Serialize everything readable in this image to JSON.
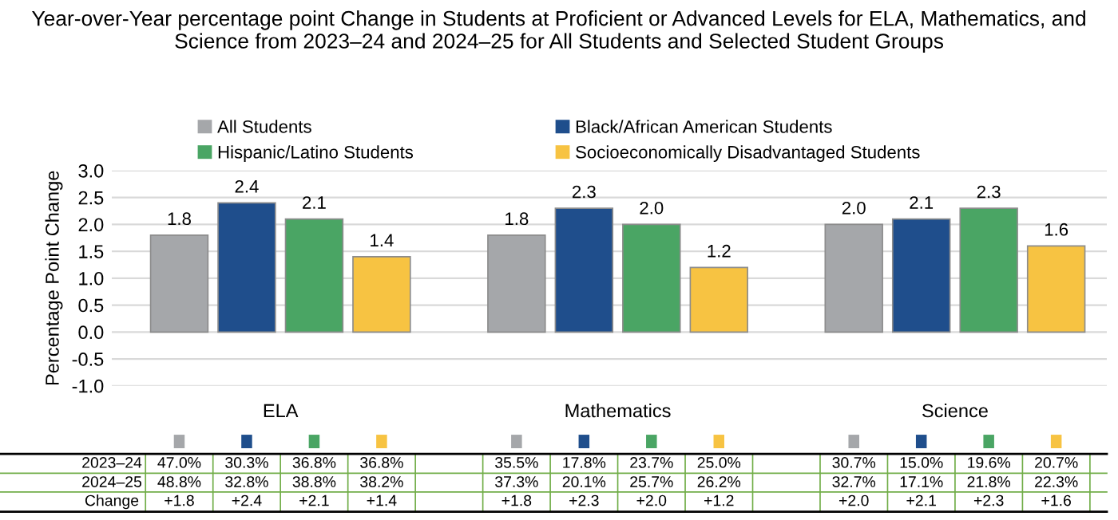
{
  "chart_data": {
    "type": "bar",
    "title": "Year-over-Year percentage point Change in Students at Proficient or Advanced Levels for ELA, Mathematics, and Science from 2023–24 and 2024–25 for All Students and Selected Student Groups",
    "ylabel": "Percentage Point Change",
    "categories": [
      "ELA",
      "Mathematics",
      "Science"
    ],
    "series": [
      {
        "name": "All Students",
        "color": "#a5a7aa",
        "values": [
          1.8,
          1.8,
          2.0
        ],
        "value_labels": [
          "1.8",
          "1.8",
          "2.0"
        ]
      },
      {
        "name": "Black/African American Students",
        "color": "#1f4e8c",
        "values": [
          2.4,
          2.3,
          2.1
        ],
        "value_labels": [
          "2.4",
          "2.3",
          "2.1"
        ]
      },
      {
        "name": "Hispanic/Latino Students",
        "color": "#4aa564",
        "values": [
          2.1,
          2.0,
          2.3
        ],
        "value_labels": [
          "2.1",
          "2.0",
          "2.3"
        ]
      },
      {
        "name": "Socioeconomically Disadvantaged Students",
        "color": "#f7c342",
        "values": [
          1.4,
          1.2,
          1.6
        ],
        "value_labels": [
          "1.4",
          "1.2",
          "1.6"
        ]
      }
    ],
    "ylim": [
      -1.0,
      3.0
    ],
    "yticks": [
      {
        "value": -1.0,
        "label": "-1.0"
      },
      {
        "value": -0.5,
        "label": "-0.5"
      },
      {
        "value": 0.0,
        "label": "0.0"
      },
      {
        "value": 0.5,
        "label": "0.5"
      },
      {
        "value": 1.0,
        "label": "1.0"
      },
      {
        "value": 1.5,
        "label": "1.5"
      },
      {
        "value": 2.0,
        "label": "2.0"
      },
      {
        "value": 2.5,
        "label": "2.5"
      },
      {
        "value": 3.0,
        "label": "3.0"
      }
    ],
    "grid": "y",
    "legend": "top",
    "annotations": [
      "2023–24",
      "47.0%",
      "30.3%",
      "36.8%",
      "36.8%",
      "35.5%",
      "17.8%",
      "23.7%",
      "25.0%",
      "30.7%",
      "15.0%",
      "19.6%",
      "20.7%",
      "2024–25",
      "48.8%",
      "32.8%",
      "38.8%",
      "38.2%",
      "37.3%",
      "20.1%",
      "25.7%",
      "26.2%",
      "32.7%",
      "17.1%",
      "21.8%",
      "22.3%",
      "Change",
      "+1.8",
      "+2.4",
      "+2.1",
      "+1.4",
      "+1.8",
      "+2.3",
      "+2.0",
      "+1.2",
      "+2.0",
      "+2.1",
      "+2.3",
      "+1.6"
    ]
  }
}
